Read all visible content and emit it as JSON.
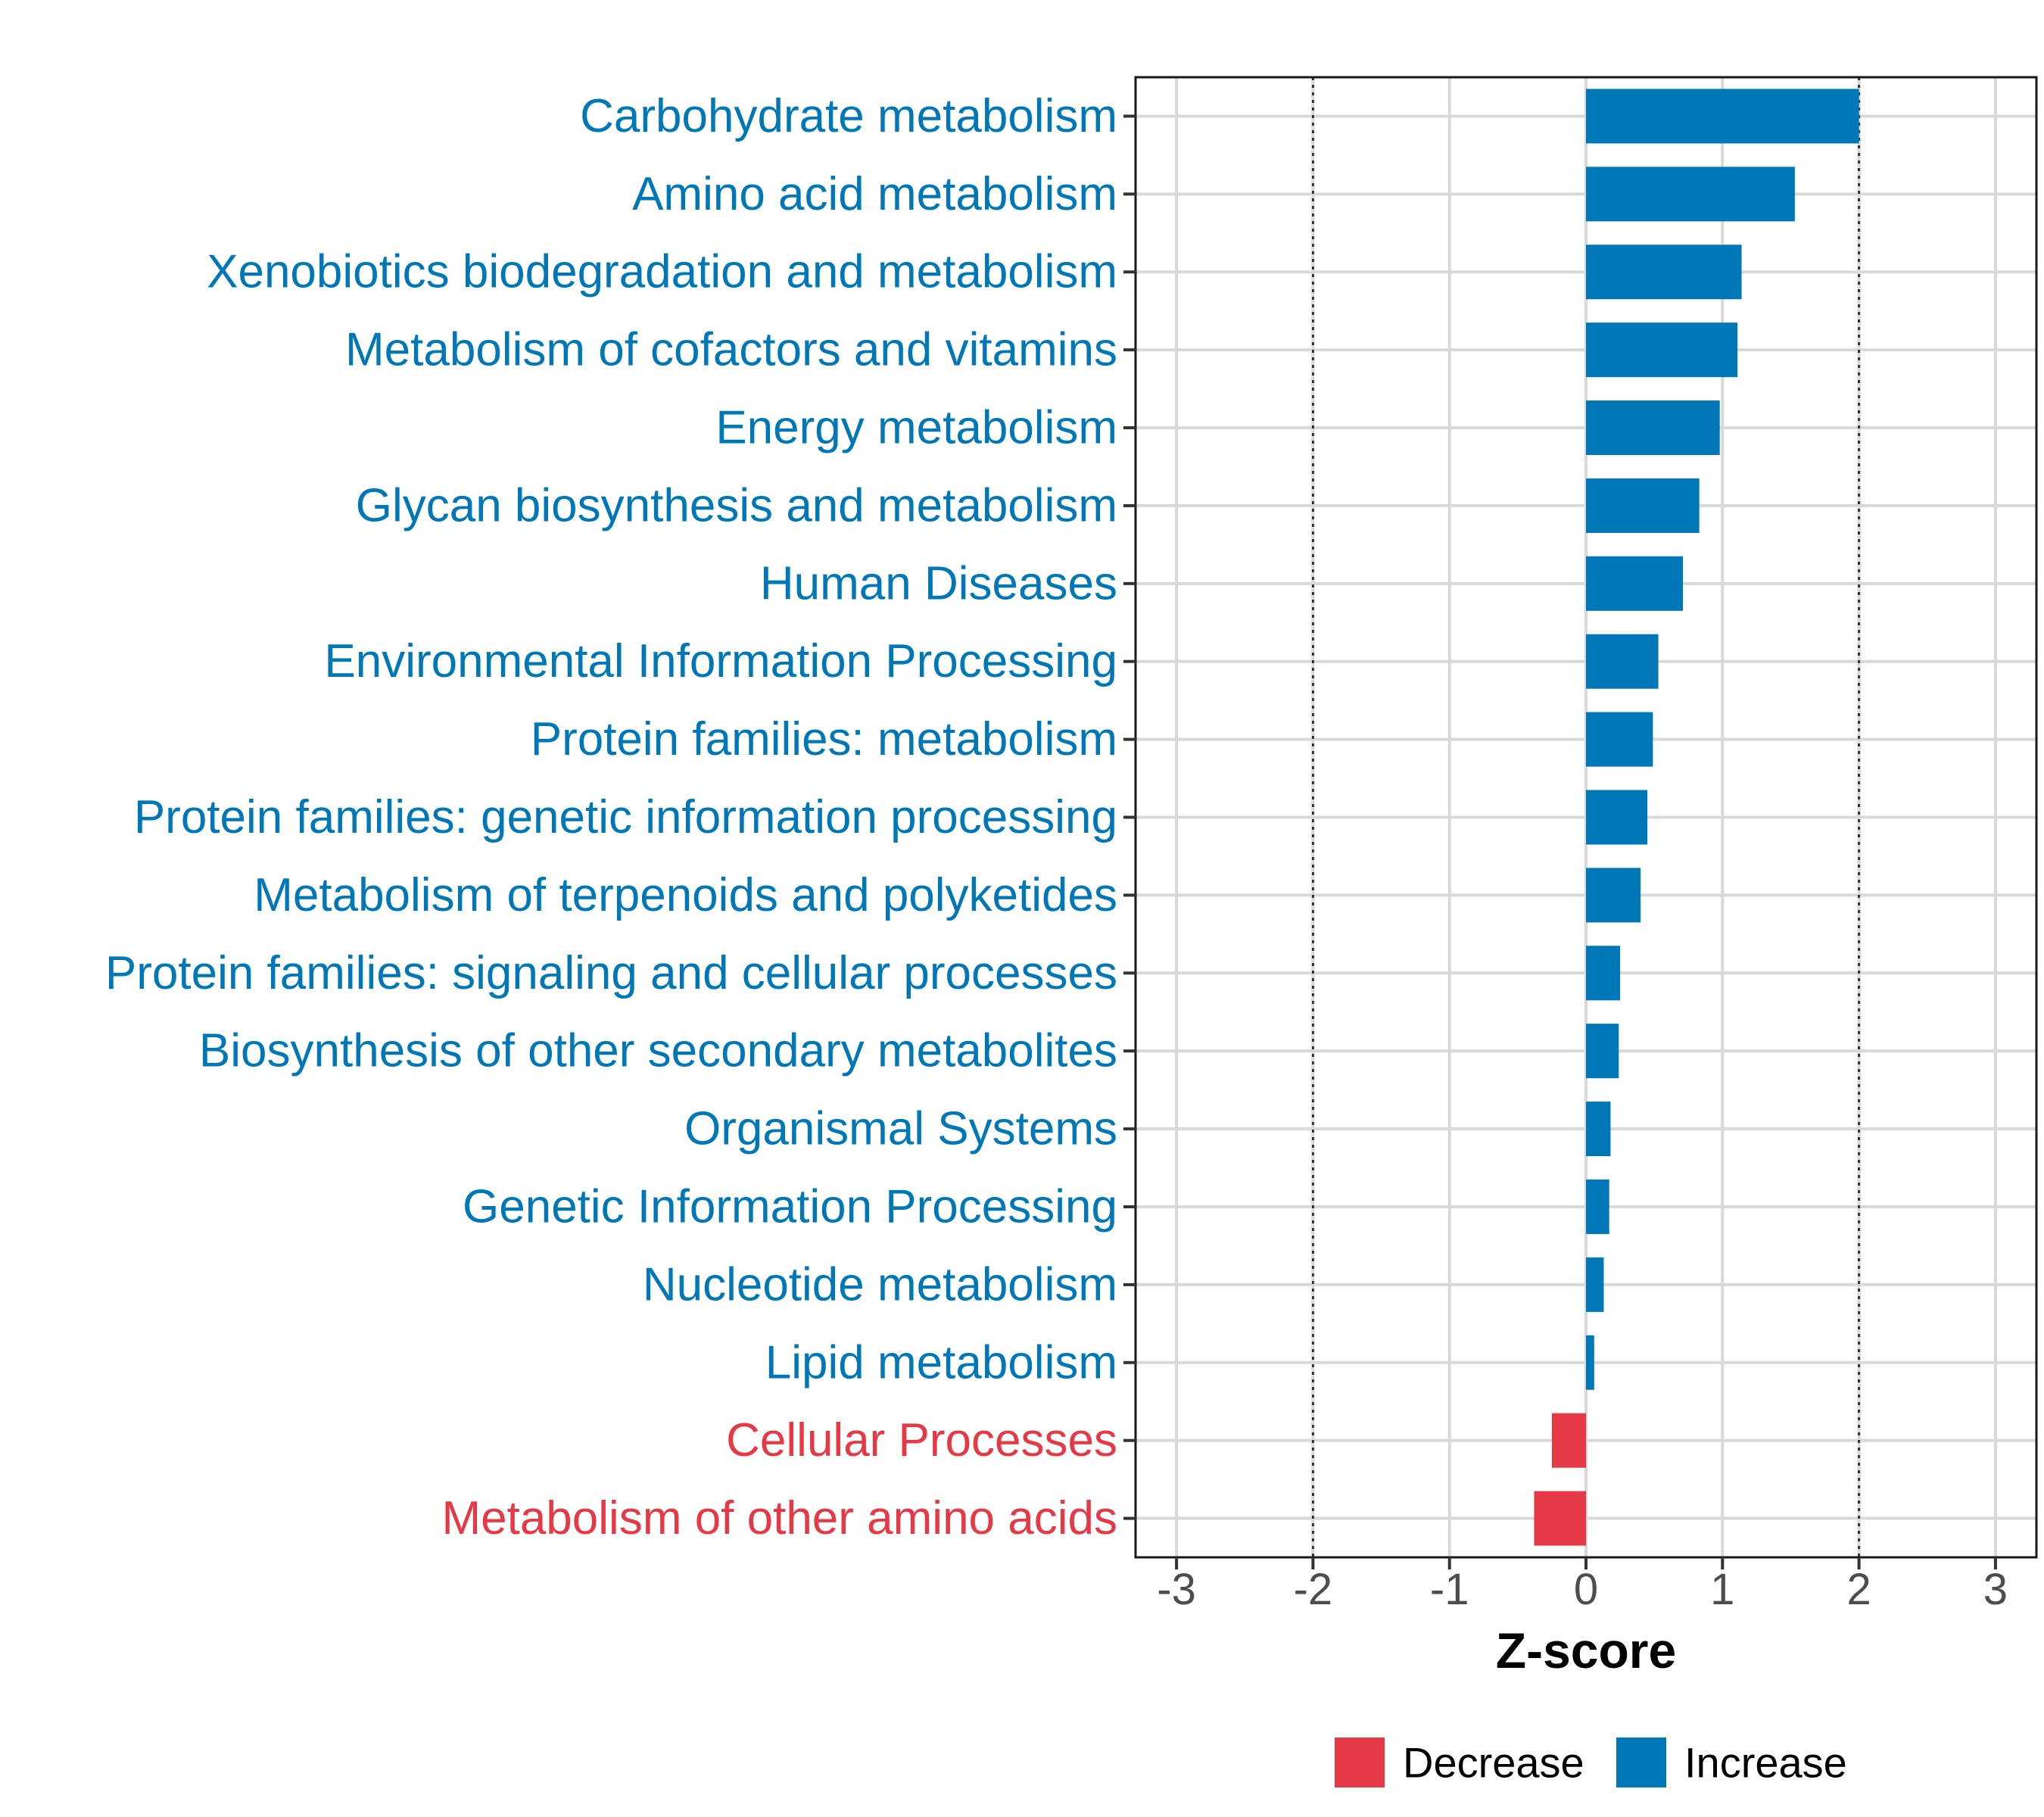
{
  "chart_data": {
    "type": "bar",
    "orientation": "horizontal",
    "title": "",
    "xlabel": "Z-score",
    "ylabel": "",
    "xlim": [
      -3.3,
      3.3
    ],
    "xticks": [
      -3,
      -2,
      -1,
      0,
      1,
      2,
      3
    ],
    "xtick_labels": [
      "-3",
      "-2",
      "-1",
      "0",
      "1",
      "2",
      "3"
    ],
    "reference_lines": [
      -2,
      2
    ],
    "grid": true,
    "legend_position": "bottom",
    "colors": {
      "Decrease": "#e63946",
      "Increase": "#0077b6"
    },
    "categories": [
      "Carbohydrate metabolism",
      "Amino acid metabolism",
      "Xenobiotics biodegradation and metabolism",
      "Metabolism of cofactors and vitamins",
      "Energy metabolism",
      "Glycan biosynthesis and metabolism",
      "Human Diseases",
      "Environmental Information Processing",
      "Protein families: metabolism",
      "Protein families: genetic information processing",
      "Metabolism of terpenoids and polyketides",
      "Protein families: signaling and cellular processes",
      "Biosynthesis of other secondary metabolites",
      "Organismal Systems",
      "Genetic Information Processing",
      "Nucleotide metabolism",
      "Lipid metabolism",
      "Cellular Processes",
      "Metabolism of other amino acids"
    ],
    "values": [
      2.0,
      1.53,
      1.14,
      1.11,
      0.98,
      0.83,
      0.71,
      0.53,
      0.49,
      0.45,
      0.4,
      0.25,
      0.24,
      0.18,
      0.17,
      0.13,
      0.06,
      -0.25,
      -0.38
    ],
    "groups": [
      "Increase",
      "Increase",
      "Increase",
      "Increase",
      "Increase",
      "Increase",
      "Increase",
      "Increase",
      "Increase",
      "Increase",
      "Increase",
      "Increase",
      "Increase",
      "Increase",
      "Increase",
      "Increase",
      "Increase",
      "Decrease",
      "Decrease"
    ],
    "legend": [
      {
        "name": "Decrease",
        "color": "#e63946"
      },
      {
        "name": "Increase",
        "color": "#0077b6"
      }
    ]
  }
}
